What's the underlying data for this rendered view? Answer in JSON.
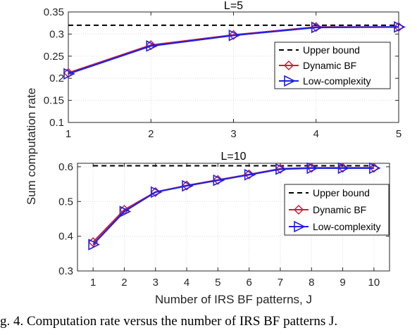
{
  "caption": "g. 4.  Computation rate versus the number of IRS BF patterns  J.",
  "shared_ylabel": "Sum computation rate",
  "colors": {
    "upper_bound": "#000000",
    "dynamic_bf": "#cc1f3a",
    "low_complexity": "#1f1fe6"
  },
  "chart_data": [
    {
      "type": "line",
      "title": "L=5",
      "xlabel": "",
      "ylabel": "Sum computation rate",
      "x": [
        1,
        2,
        3,
        4,
        5
      ],
      "xlim": [
        1,
        5
      ],
      "ylim": [
        0.1,
        0.35
      ],
      "xticks": [
        1,
        2,
        3,
        4,
        5
      ],
      "yticks": [
        0.1,
        0.15,
        0.2,
        0.25,
        0.3,
        0.35
      ],
      "ytick_labels": [
        "0.1",
        "0.15",
        "0.2",
        "0.25",
        "0.3",
        "0.35"
      ],
      "grid": true,
      "legend_position": "right",
      "series": [
        {
          "name": "Upper bound",
          "style": "dashed",
          "marker": "none",
          "values": [
            0.32,
            0.32,
            0.32,
            0.32,
            0.32
          ]
        },
        {
          "name": "Dynamic BF",
          "style": "solid",
          "marker": "diamond",
          "values": [
            0.212,
            0.275,
            0.298,
            0.316,
            0.316
          ]
        },
        {
          "name": "Low-complexity",
          "style": "solid",
          "marker": "triangle-right",
          "values": [
            0.21,
            0.273,
            0.297,
            0.315,
            0.316
          ]
        }
      ]
    },
    {
      "type": "line",
      "title": "L=10",
      "xlabel": "Number of IRS BF patterns, J",
      "ylabel": "Sum computation rate",
      "x": [
        1,
        2,
        3,
        4,
        5,
        6,
        7,
        8,
        9,
        10
      ],
      "xlim": [
        0.5,
        10.5
      ],
      "ylim": [
        0.3,
        0.61
      ],
      "xticks": [
        1,
        2,
        3,
        4,
        5,
        6,
        7,
        8,
        9,
        10
      ],
      "yticks": [
        0.3,
        0.4,
        0.5,
        0.6
      ],
      "ytick_labels": [
        "0.3",
        "0.4",
        "0.5",
        "0.6"
      ],
      "grid": true,
      "legend_position": "right",
      "series": [
        {
          "name": "Upper bound",
          "style": "dashed",
          "marker": "none",
          "values": [
            0.603,
            0.603,
            0.603,
            0.603,
            0.603,
            0.603,
            0.603,
            0.603,
            0.603,
            0.603
          ]
        },
        {
          "name": "Dynamic BF",
          "style": "solid",
          "marker": "diamond",
          "values": [
            0.383,
            0.476,
            0.527,
            0.546,
            0.562,
            0.578,
            0.594,
            0.597,
            0.597,
            0.597
          ]
        },
        {
          "name": "Low-complexity",
          "style": "solid",
          "marker": "triangle-right",
          "values": [
            0.376,
            0.471,
            0.527,
            0.545,
            0.561,
            0.577,
            0.593,
            0.596,
            0.596,
            0.596
          ]
        }
      ]
    }
  ]
}
